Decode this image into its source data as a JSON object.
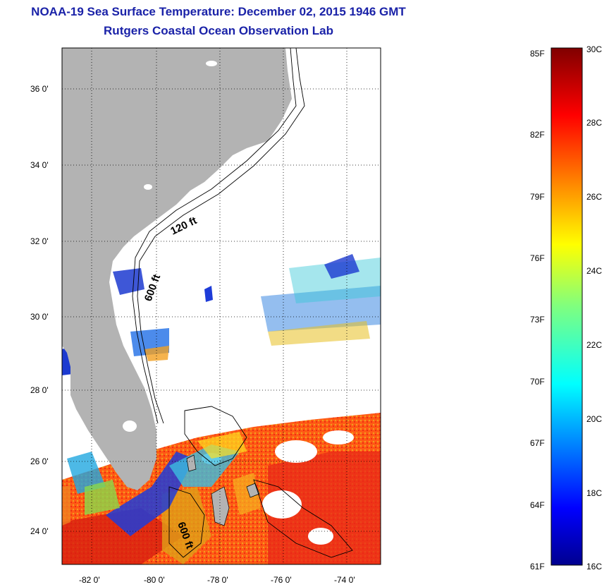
{
  "title": "NOAA-19 Sea Surface Temperature:  December 02, 2015 1946 GMT",
  "subtitle": "Rutgers Coastal Ocean Observation Lab",
  "map": {
    "lat_labels": [
      "36 0'",
      "34 0'",
      "32 0'",
      "30 0'",
      "28 0'",
      "26 0'",
      "24 0'"
    ],
    "lon_labels": [
      "-82 0'",
      "-80 0'",
      "-78 0'",
      "-76 0'",
      "-74 0'"
    ],
    "contour_labels": [
      "120 ft",
      "600 ft",
      "600 ft"
    ],
    "land_color": "#b3b3b3"
  },
  "colorbar": {
    "fahrenheit_labels": [
      "85F",
      "82F",
      "79F",
      "76F",
      "73F",
      "70F",
      "67F",
      "64F",
      "61F"
    ],
    "celsius_labels": [
      "30C",
      "28C",
      "26C",
      "24C",
      "22C",
      "20C",
      "18C",
      "16C"
    ],
    "scale": "jet",
    "min_c": 16,
    "max_c": 30
  }
}
